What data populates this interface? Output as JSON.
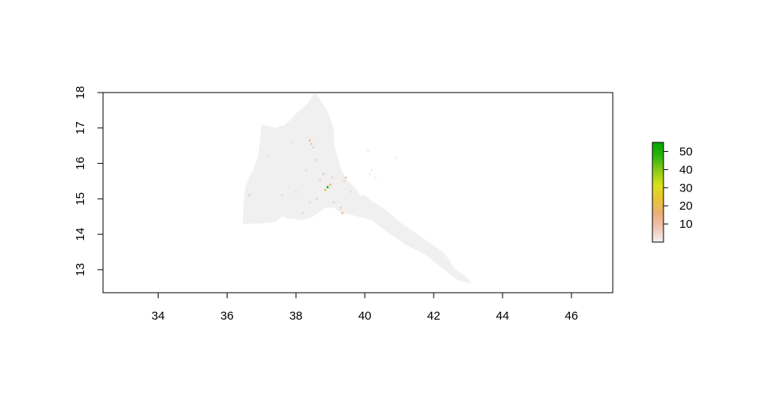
{
  "map": {
    "x_axis": {
      "range": [
        32.4,
        47.2
      ],
      "ticks": [
        "34",
        "36",
        "38",
        "40",
        "42",
        "44",
        "46"
      ]
    },
    "y_axis": {
      "range": [
        12.35,
        18.0
      ],
      "ticks": [
        "13",
        "14",
        "15",
        "16",
        "17",
        "18"
      ]
    },
    "background_fill_color": "#f0f0f0",
    "outline": [
      [
        36.5,
        15.1
      ],
      [
        36.45,
        14.3
      ],
      [
        36.9,
        14.3
      ],
      [
        37.4,
        14.35
      ],
      [
        37.6,
        14.5
      ],
      [
        37.75,
        14.45
      ],
      [
        38.2,
        14.4
      ],
      [
        38.5,
        14.5
      ],
      [
        38.85,
        14.75
      ],
      [
        39.1,
        14.75
      ],
      [
        39.3,
        14.6
      ],
      [
        39.6,
        14.55
      ],
      [
        40.2,
        14.4
      ],
      [
        40.6,
        14.1
      ],
      [
        41.2,
        13.7
      ],
      [
        41.8,
        13.4
      ],
      [
        42.3,
        13.0
      ],
      [
        42.7,
        12.7
      ],
      [
        43.1,
        12.6
      ],
      [
        43.0,
        12.75
      ],
      [
        42.6,
        13.05
      ],
      [
        42.4,
        13.35
      ],
      [
        42.2,
        13.55
      ],
      [
        41.6,
        13.95
      ],
      [
        41.0,
        14.35
      ],
      [
        40.6,
        14.7
      ],
      [
        40.25,
        14.9
      ],
      [
        40.0,
        15.1
      ],
      [
        39.85,
        15.1
      ],
      [
        39.7,
        15.35
      ],
      [
        39.5,
        15.5
      ],
      [
        39.3,
        15.85
      ],
      [
        39.2,
        16.2
      ],
      [
        39.1,
        16.6
      ],
      [
        39.1,
        17.0
      ],
      [
        38.9,
        17.5
      ],
      [
        38.7,
        17.8
      ],
      [
        38.55,
        18.0
      ],
      [
        38.35,
        17.7
      ],
      [
        38.0,
        17.4
      ],
      [
        37.7,
        17.1
      ],
      [
        37.4,
        17.0
      ],
      [
        37.0,
        17.1
      ],
      [
        36.95,
        16.6
      ],
      [
        36.9,
        16.2
      ],
      [
        36.75,
        15.8
      ],
      [
        36.55,
        15.4
      ]
    ],
    "hotspots": [
      {
        "lon": 38.92,
        "lat": 15.33,
        "value": 55
      },
      {
        "lon": 38.85,
        "lat": 15.25,
        "value": 20
      },
      {
        "lon": 39.0,
        "lat": 15.4,
        "value": 15
      },
      {
        "lon": 38.4,
        "lat": 16.65,
        "value": 12
      },
      {
        "lon": 38.45,
        "lat": 16.55,
        "value": 8
      },
      {
        "lon": 38.5,
        "lat": 16.45,
        "value": 6
      },
      {
        "lon": 38.6,
        "lat": 16.1,
        "value": 6
      },
      {
        "lon": 38.8,
        "lat": 15.7,
        "value": 8
      },
      {
        "lon": 39.45,
        "lat": 15.6,
        "value": 10
      },
      {
        "lon": 39.4,
        "lat": 15.5,
        "value": 6
      },
      {
        "lon": 39.35,
        "lat": 14.6,
        "value": 12
      },
      {
        "lon": 39.3,
        "lat": 14.75,
        "value": 8
      },
      {
        "lon": 39.1,
        "lat": 14.9,
        "value": 6
      },
      {
        "lon": 38.6,
        "lat": 15.0,
        "value": 6
      },
      {
        "lon": 38.4,
        "lat": 14.9,
        "value": 5
      },
      {
        "lon": 38.0,
        "lat": 15.2,
        "value": 5
      },
      {
        "lon": 37.6,
        "lat": 15.1,
        "value": 5
      },
      {
        "lon": 36.65,
        "lat": 15.1,
        "value": 7
      },
      {
        "lon": 37.2,
        "lat": 16.2,
        "value": 4
      },
      {
        "lon": 38.3,
        "lat": 15.8,
        "value": 4
      },
      {
        "lon": 37.9,
        "lat": 16.6,
        "value": 4
      },
      {
        "lon": 38.2,
        "lat": 14.6,
        "value": 5
      },
      {
        "lon": 39.6,
        "lat": 15.2,
        "value": 4
      },
      {
        "lon": 38.7,
        "lat": 15.55,
        "value": 6
      },
      {
        "lon": 39.05,
        "lat": 15.6,
        "value": 5
      }
    ],
    "islands": [
      {
        "lon": 40.2,
        "lat": 15.8,
        "value": 0
      },
      {
        "lon": 40.15,
        "lat": 15.7,
        "value": 0
      },
      {
        "lon": 40.3,
        "lat": 15.6,
        "value": 0
      },
      {
        "lon": 40.1,
        "lat": 16.35,
        "value": 0
      },
      {
        "lon": 40.9,
        "lat": 16.15,
        "value": 0
      }
    ]
  },
  "legend": {
    "ticks": [
      "10",
      "20",
      "30",
      "40",
      "50"
    ],
    "range": [
      0,
      55
    ],
    "colors": [
      "#f2f2f2",
      "#efc4b4",
      "#ebae76",
      "#e8c434",
      "#d9e01a",
      "#8ccc14",
      "#30b410",
      "#00a600"
    ]
  }
}
